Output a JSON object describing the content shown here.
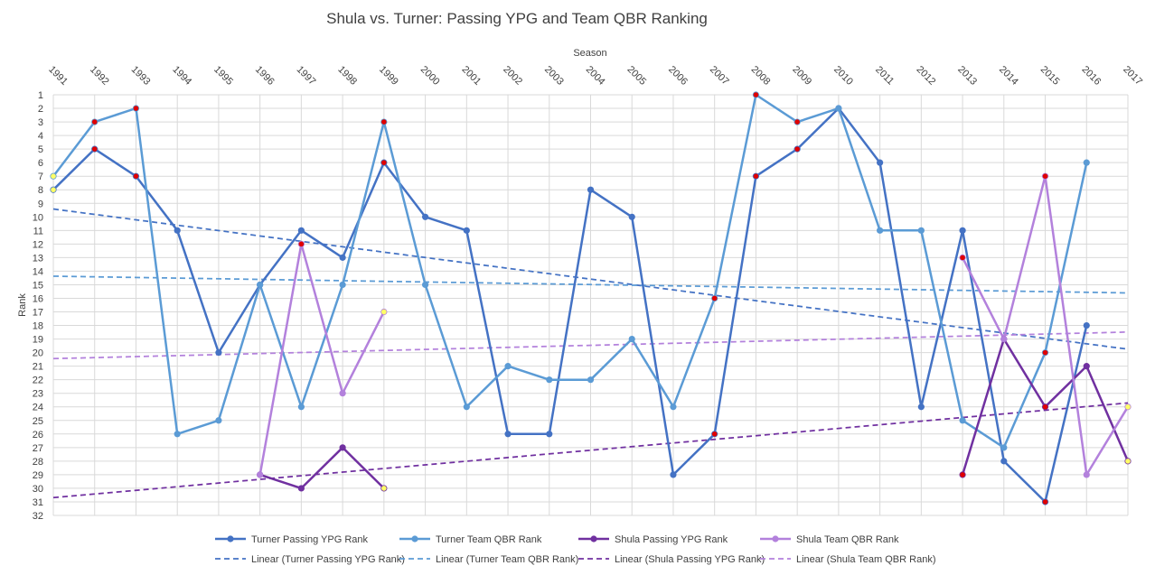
{
  "chart_data": {
    "type": "line",
    "title": "Shula vs. Turner: Passing YPG and Team QBR Ranking",
    "xlabel": "Season",
    "ylabel": "Rank",
    "x": [
      1991,
      1992,
      1993,
      1994,
      1995,
      1996,
      1997,
      1998,
      1999,
      2000,
      2001,
      2002,
      2003,
      2004,
      2005,
      2006,
      2007,
      2008,
      2009,
      2010,
      2011,
      2012,
      2013,
      2014,
      2015,
      2016,
      2017
    ],
    "x_tick_labels": [
      "1991",
      "1992",
      "1993",
      "1994",
      "1995",
      "1996",
      "1997",
      "1998",
      "1999",
      "2000",
      "2001",
      "2002",
      "2003",
      "2004",
      "2005",
      "2006",
      "2007",
      "2008",
      "2009",
      "2010",
      "2011",
      "2012",
      "2013",
      "2014",
      "2015",
      "2016",
      "2017"
    ],
    "y_tick_labels": [
      "1",
      "2",
      "3",
      "4",
      "5",
      "6",
      "7",
      "8",
      "9",
      "10",
      "11",
      "12",
      "13",
      "14",
      "15",
      "16",
      "17",
      "18",
      "19",
      "20",
      "21",
      "22",
      "23",
      "24",
      "25",
      "26",
      "27",
      "28",
      "29",
      "30",
      "31",
      "32"
    ],
    "ylim": [
      1,
      32
    ],
    "y_reversed": true,
    "x_axis_position": "top",
    "grid": true,
    "legend_position": "bottom",
    "series": [
      {
        "name": "Turner Passing YPG Rank",
        "color": "#4472C4",
        "values": [
          8,
          5,
          7,
          11,
          20,
          15,
          11,
          13,
          6,
          10,
          11,
          26,
          26,
          8,
          10,
          29,
          26,
          7,
          5,
          2,
          6,
          24,
          11,
          28,
          31,
          18,
          null
        ]
      },
      {
        "name": "Turner Team QBR Rank",
        "color": "#5B9BD5",
        "values": [
          7,
          3,
          2,
          26,
          25,
          15,
          24,
          15,
          3,
          15,
          24,
          21,
          22,
          22,
          19,
          24,
          16,
          1,
          3,
          2,
          11,
          11,
          25,
          27,
          20,
          6,
          null
        ]
      },
      {
        "name": "Shula Passing YPG Rank",
        "color": "#7030A0",
        "values": [
          null,
          null,
          null,
          null,
          null,
          29,
          30,
          27,
          30,
          null,
          null,
          null,
          null,
          null,
          null,
          null,
          null,
          null,
          null,
          null,
          null,
          null,
          29,
          19,
          24,
          21,
          28
        ]
      },
      {
        "name": "Shula Team QBR Rank",
        "color": "#B381DC",
        "values": [
          null,
          null,
          null,
          null,
          null,
          29,
          12,
          23,
          17,
          null,
          null,
          null,
          null,
          null,
          null,
          null,
          null,
          null,
          null,
          null,
          null,
          null,
          13,
          19,
          7,
          29,
          24
        ]
      }
    ],
    "trendlines": [
      {
        "name": "Linear (Turner Passing YPG Rank)",
        "color": "#4472C4",
        "series_index": 0
      },
      {
        "name": "Linear (Turner Team QBR Rank)",
        "color": "#5B9BD5",
        "series_index": 1
      },
      {
        "name": "Linear (Shula Passing YPG Rank)",
        "color": "#7030A0",
        "series_index": 2
      },
      {
        "name": "Linear (Shula Team QBR Rank)",
        "color": "#B381DC",
        "series_index": 3
      }
    ],
    "highlight_markers": [
      {
        "series": 0,
        "x": 1991,
        "color": "#FFFF66"
      },
      {
        "series": 0,
        "x": 1992,
        "color": "#E00000"
      },
      {
        "series": 0,
        "x": 1993,
        "color": "#E00000"
      },
      {
        "series": 0,
        "x": 1999,
        "color": "#E00000"
      },
      {
        "series": 0,
        "x": 2007,
        "color": "#E00000"
      },
      {
        "series": 0,
        "x": 2008,
        "color": "#E00000"
      },
      {
        "series": 0,
        "x": 2009,
        "color": "#E00000"
      },
      {
        "series": 0,
        "x": 2015,
        "color": "#E00000"
      },
      {
        "series": 1,
        "x": 1991,
        "color": "#FFFF66"
      },
      {
        "series": 1,
        "x": 1992,
        "color": "#E00000"
      },
      {
        "series": 1,
        "x": 1993,
        "color": "#E00000"
      },
      {
        "series": 1,
        "x": 1999,
        "color": "#E00000"
      },
      {
        "series": 1,
        "x": 2007,
        "color": "#E00000"
      },
      {
        "series": 1,
        "x": 2008,
        "color": "#E00000"
      },
      {
        "series": 1,
        "x": 2009,
        "color": "#E00000"
      },
      {
        "series": 1,
        "x": 2015,
        "color": "#E00000"
      },
      {
        "series": 2,
        "x": 1999,
        "color": "#FFFF66"
      },
      {
        "series": 2,
        "x": 2013,
        "color": "#E00000"
      },
      {
        "series": 2,
        "x": 2015,
        "color": "#E00000"
      },
      {
        "series": 2,
        "x": 2017,
        "color": "#FFFF66"
      },
      {
        "series": 3,
        "x": 1997,
        "color": "#E00000"
      },
      {
        "series": 3,
        "x": 1999,
        "color": "#FFFF66"
      },
      {
        "series": 3,
        "x": 2013,
        "color": "#E00000"
      },
      {
        "series": 3,
        "x": 2015,
        "color": "#E00000"
      },
      {
        "series": 3,
        "x": 2017,
        "color": "#FFFF66"
      }
    ]
  }
}
